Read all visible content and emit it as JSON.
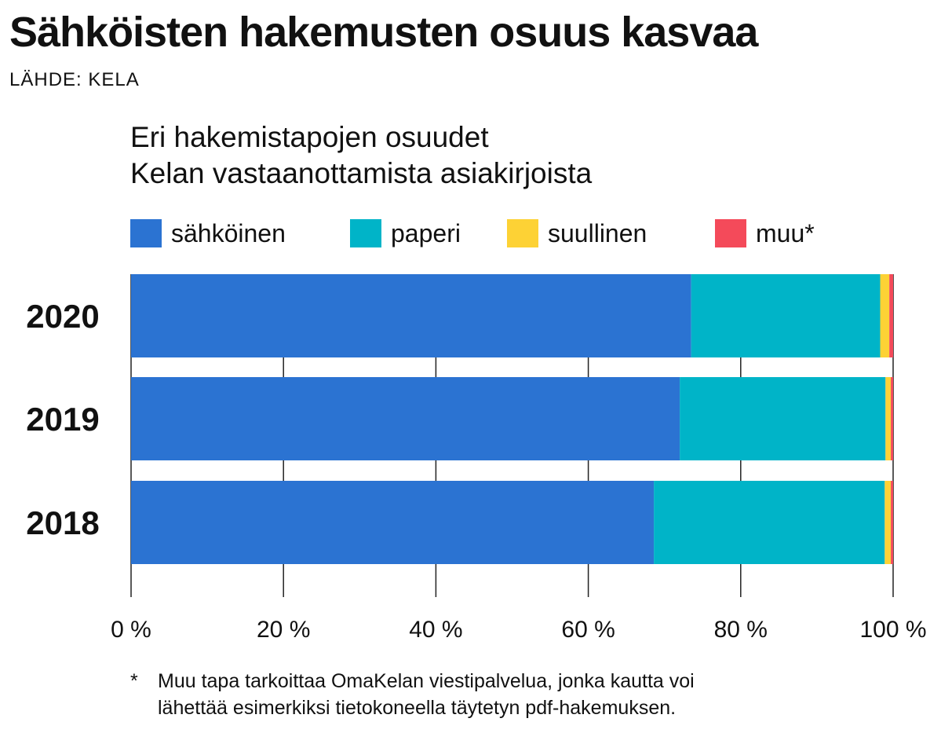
{
  "header": {
    "title": "Sähköisten hakemusten osuus kasvaa",
    "source": "LÄHDE: KELA"
  },
  "subtitle": {
    "line1": "Eri hakemistapojen osuudet",
    "line2": "Kelan vastaanottamista asiakirjoista"
  },
  "legend": [
    {
      "label": "sähköinen",
      "color": "#2b73d2"
    },
    {
      "label": "paperi",
      "color": "#00b4c8"
    },
    {
      "label": "suullinen",
      "color": "#fdd235"
    },
    {
      "label": "muu*",
      "color": "#f44a5a"
    }
  ],
  "chart_data": {
    "type": "bar",
    "orientation": "horizontal",
    "stacked": true,
    "title": "Eri hakemistapojen osuudet Kelan vastaanottamista asiakirjoista",
    "categories": [
      "2020",
      "2019",
      "2018"
    ],
    "series": [
      {
        "name": "sähköinen",
        "color": "#2b73d2",
        "values": [
          73.5,
          72,
          68.6
        ]
      },
      {
        "name": "paperi",
        "color": "#00b4c8",
        "values": [
          24.8,
          27,
          30.3
        ]
      },
      {
        "name": "suullinen",
        "color": "#fdd235",
        "values": [
          1.2,
          0.7,
          0.8
        ]
      },
      {
        "name": "muu*",
        "color": "#f44a5a",
        "values": [
          0.5,
          0.3,
          0.3
        ]
      }
    ],
    "xlim": [
      0,
      100
    ],
    "xticks": [
      0,
      20,
      40,
      60,
      80,
      100
    ],
    "xtick_labels": [
      "0 %",
      "20 %",
      "40 %",
      "60 %",
      "80 %",
      "100 %"
    ],
    "grid": true,
    "legend_position": "top"
  },
  "footnote": {
    "star": "*",
    "line1": "Muu tapa tarkoittaa OmaKelan viestipalvelua, jonka kautta voi",
    "line2": "lähettää esimerkiksi tietokoneella täytetyn pdf-hakemuksen."
  }
}
